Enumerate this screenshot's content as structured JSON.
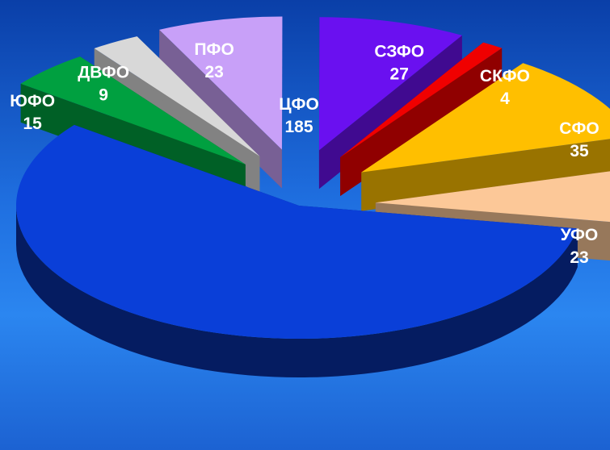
{
  "chart_data": {
    "type": "pie",
    "title": "",
    "slices": [
      {
        "label": "ЦФО",
        "value": 185,
        "color": "#0a3fd8"
      },
      {
        "label": "ЮФО",
        "value": 15,
        "color": "#00a040"
      },
      {
        "label": "ДВФО",
        "value": 9,
        "color": "#d8d8d8"
      },
      {
        "label": "ПФО",
        "value": 23,
        "color": "#c8a0f8"
      },
      {
        "label": "СЗФО",
        "value": 27,
        "color": "#6a10f0"
      },
      {
        "label": "СКФО",
        "value": 4,
        "color": "#f00000"
      },
      {
        "label": "СФО",
        "value": 35,
        "color": "#ffbf00"
      },
      {
        "label": "УФО",
        "value": 23,
        "color": "#fcc898"
      }
    ]
  }
}
